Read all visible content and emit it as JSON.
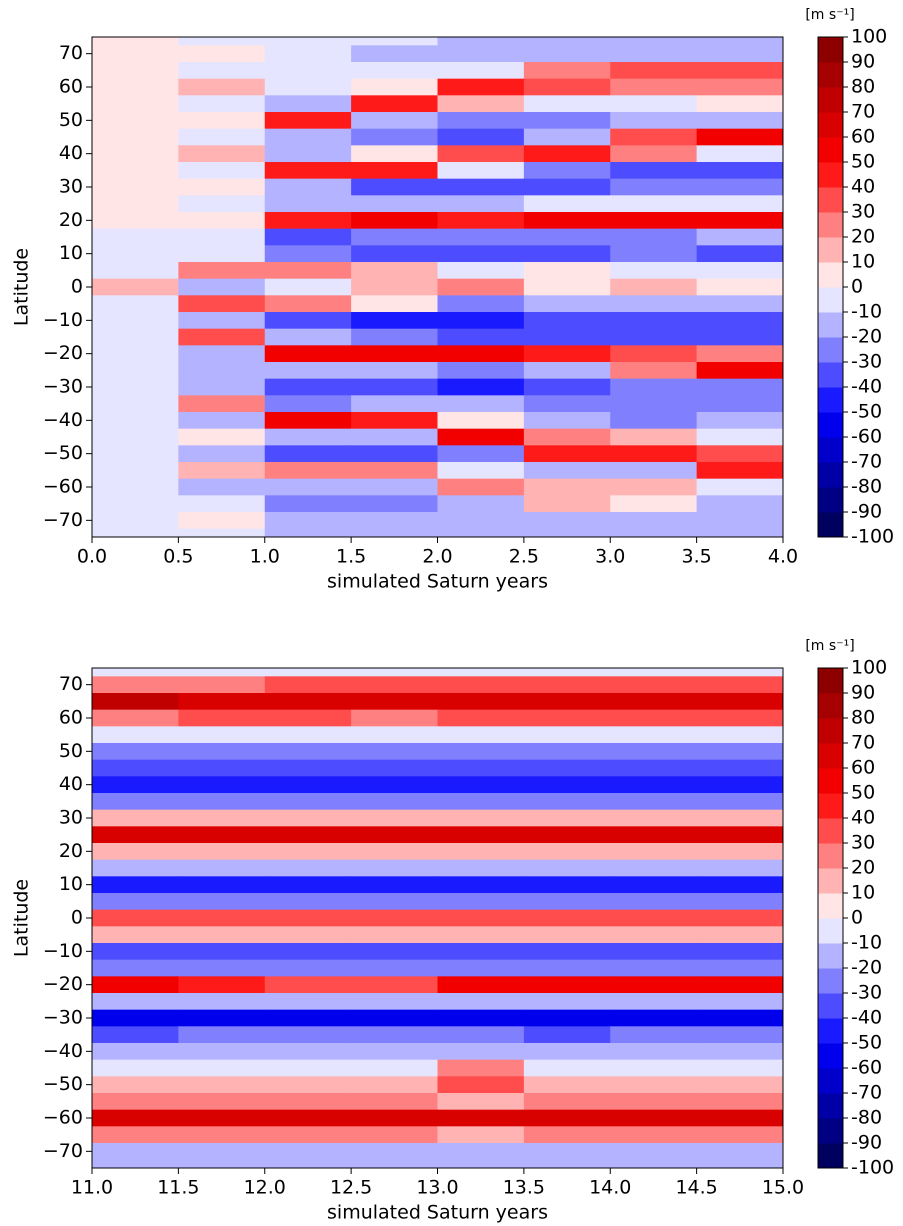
{
  "chart_data": [
    {
      "type": "heatmap",
      "xlabel": "simulated Saturn years",
      "ylabel": "Latitude",
      "xlim": [
        0,
        4
      ],
      "ylim": [
        -75,
        75
      ],
      "xticks": [
        {
          "value": 0,
          "label": "0.0"
        },
        0.5,
        {
          "value": 1,
          "label": "1.0"
        },
        1.5,
        {
          "value": 2,
          "label": "2.0"
        },
        2.5,
        {
          "value": 3,
          "label": "3.0"
        },
        3.5,
        {
          "value": 4,
          "label": "4.0"
        }
      ],
      "yticks": [
        70,
        60,
        50,
        40,
        30,
        20,
        10,
        0,
        {
          "value": -10,
          "label": "−10"
        },
        {
          "value": -20,
          "label": "−20"
        },
        {
          "value": -30,
          "label": "−30"
        },
        {
          "value": -40,
          "label": "−40"
        },
        {
          "value": -50,
          "label": "−50"
        },
        {
          "value": -60,
          "label": "−60"
        },
        {
          "value": -70,
          "label": "−70"
        }
      ],
      "colorbar": {
        "label": "[m s⁻¹]",
        "lim": [
          -100,
          100
        ],
        "ticks": [
          100,
          90,
          80,
          70,
          60,
          50,
          40,
          30,
          20,
          10,
          0,
          -10,
          -20,
          -30,
          -40,
          -50,
          -60,
          -70,
          -80,
          -90,
          -100
        ]
      },
      "x": [
        0.25,
        0.75,
        1.25,
        1.75,
        2.25,
        2.75,
        3.25,
        3.75
      ],
      "y": [
        75,
        70,
        65,
        60,
        55,
        50,
        45,
        40,
        35,
        30,
        25,
        20,
        15,
        10,
        5,
        0,
        -5,
        -10,
        -15,
        -20,
        -25,
        -30,
        -35,
        -40,
        -45,
        -50,
        -55,
        -60,
        -65,
        -70,
        -75
      ],
      "z": [
        [
          1,
          -3,
          -5,
          -5,
          -10,
          -10,
          -10,
          -10
        ],
        [
          1,
          5,
          -5,
          -10,
          -15,
          -10,
          -15,
          -10
        ],
        [
          1,
          -3,
          -5,
          -5,
          -5,
          30,
          40,
          40
        ],
        [
          1,
          15,
          -5,
          10,
          50,
          40,
          30,
          30
        ],
        [
          1,
          -3,
          -10,
          50,
          20,
          -5,
          0,
          10
        ],
        [
          1,
          10,
          50,
          -10,
          -20,
          -20,
          -15,
          -10
        ],
        [
          1,
          -3,
          -10,
          -20,
          -30,
          -10,
          40,
          60
        ],
        [
          1,
          15,
          -15,
          10,
          40,
          50,
          30,
          0
        ],
        [
          1,
          -3,
          50,
          50,
          0,
          -20,
          -30,
          -30
        ],
        [
          1,
          10,
          -10,
          -30,
          -35,
          -30,
          -20,
          -20
        ],
        [
          1,
          -3,
          -10,
          -15,
          -10,
          -5,
          -5,
          -5
        ],
        [
          1,
          10,
          50,
          60,
          50,
          55,
          55,
          60
        ],
        [
          0,
          -3,
          -30,
          -20,
          -25,
          -20,
          -20,
          -15
        ],
        [
          -5,
          -5,
          -25,
          -30,
          -30,
          -30,
          -25,
          -30
        ],
        [
          -5,
          30,
          30,
          20,
          -5,
          10,
          -5,
          -5
        ],
        [
          20,
          -10,
          -5,
          20,
          30,
          10,
          15,
          10
        ],
        [
          -5,
          40,
          30,
          10,
          -20,
          -15,
          -10,
          -10
        ],
        [
          -3,
          -10,
          -30,
          -40,
          -40,
          -35,
          -30,
          -30
        ],
        [
          0,
          40,
          -15,
          -25,
          -30,
          -30,
          -30,
          -30
        ],
        [
          0,
          -10,
          60,
          60,
          60,
          50,
          40,
          30
        ],
        [
          0,
          -10,
          -10,
          -10,
          -20,
          -10,
          30,
          60
        ],
        [
          0,
          -10,
          -35,
          -35,
          -40,
          -35,
          -25,
          -20
        ],
        [
          0,
          30,
          -20,
          -15,
          -15,
          -20,
          -25,
          -20
        ],
        [
          0,
          -10,
          60,
          50,
          10,
          -15,
          -20,
          -15
        ],
        [
          0,
          10,
          -10,
          -10,
          60,
          30,
          20,
          -5
        ],
        [
          0,
          -10,
          -30,
          -30,
          -20,
          50,
          50,
          40
        ],
        [
          0,
          15,
          30,
          30,
          0,
          -10,
          -10,
          50
        ],
        [
          0,
          -10,
          -10,
          -10,
          30,
          20,
          20,
          0
        ],
        [
          0,
          -3,
          -20,
          -20,
          -10,
          20,
          10,
          -10
        ],
        [
          0,
          10,
          -10,
          -10,
          -15,
          -10,
          -10,
          -10
        ],
        [
          0,
          -5,
          -15,
          -15,
          -15,
          -10,
          -10,
          -10
        ]
      ]
    },
    {
      "type": "heatmap",
      "xlabel": "simulated Saturn years",
      "ylabel": "Latitude",
      "xlim": [
        11,
        15
      ],
      "ylim": [
        -75,
        75
      ],
      "xticks": [
        {
          "value": 11,
          "label": "11.0"
        },
        11.5,
        {
          "value": 12,
          "label": "12.0"
        },
        12.5,
        {
          "value": 13,
          "label": "13.0"
        },
        13.5,
        {
          "value": 14,
          "label": "14.0"
        },
        14.5,
        {
          "value": 15,
          "label": "15.0"
        }
      ],
      "yticks": [
        70,
        60,
        50,
        40,
        30,
        20,
        10,
        0,
        {
          "value": -10,
          "label": "−10"
        },
        {
          "value": -20,
          "label": "−20"
        },
        {
          "value": -30,
          "label": "−30"
        },
        {
          "value": -40,
          "label": "−40"
        },
        {
          "value": -50,
          "label": "−50"
        },
        {
          "value": -60,
          "label": "−60"
        },
        {
          "value": -70,
          "label": "−70"
        }
      ],
      "colorbar": {
        "label": "[m s⁻¹]",
        "lim": [
          -100,
          100
        ],
        "ticks": [
          100,
          90,
          80,
          70,
          60,
          50,
          40,
          30,
          20,
          10,
          0,
          -10,
          -20,
          -30,
          -40,
          -50,
          -60,
          -70,
          -80,
          -90,
          -100
        ]
      },
      "x": [
        11.25,
        11.75,
        12.25,
        12.75,
        13.25,
        13.75,
        14.25,
        14.75
      ],
      "y": [
        75,
        70,
        65,
        60,
        55,
        50,
        45,
        40,
        35,
        30,
        25,
        20,
        15,
        10,
        5,
        0,
        -5,
        -10,
        -15,
        -20,
        -25,
        -30,
        -35,
        -40,
        -45,
        -50,
        -55,
        -60,
        -65,
        -70,
        -75
      ],
      "z": [
        [
          -5,
          -5,
          -5,
          -5,
          -5,
          -5,
          -5,
          -5
        ],
        [
          30,
          30,
          35,
          40,
          40,
          40,
          40,
          40
        ],
        [
          80,
          70,
          70,
          70,
          70,
          70,
          70,
          70
        ],
        [
          30,
          40,
          40,
          30,
          40,
          40,
          40,
          40
        ],
        [
          -5,
          -5,
          -5,
          -5,
          -5,
          -5,
          -5,
          -5
        ],
        [
          -25,
          -20,
          -20,
          -20,
          -20,
          -20,
          -20,
          -20
        ],
        [
          -35,
          -35,
          -35,
          -35,
          -35,
          -35,
          -35,
          -35
        ],
        [
          -40,
          -40,
          -40,
          -40,
          -45,
          -45,
          -40,
          -40
        ],
        [
          -25,
          -25,
          -25,
          -25,
          -25,
          -25,
          -25,
          -25
        ],
        [
          20,
          20,
          20,
          20,
          20,
          20,
          20,
          20
        ],
        [
          70,
          70,
          70,
          70,
          70,
          70,
          70,
          70
        ],
        [
          20,
          20,
          20,
          20,
          20,
          20,
          20,
          20
        ],
        [
          -15,
          -15,
          -15,
          -15,
          -15,
          -15,
          -15,
          -15
        ],
        [
          -40,
          -40,
          -40,
          -40,
          -45,
          -40,
          -40,
          -40
        ],
        [
          -20,
          -20,
          -20,
          -25,
          -20,
          -20,
          -20,
          -25
        ],
        [
          40,
          40,
          35,
          40,
          40,
          40,
          40,
          40
        ],
        [
          20,
          20,
          20,
          20,
          20,
          20,
          20,
          20
        ],
        [
          -30,
          -35,
          -35,
          -35,
          -35,
          -35,
          -35,
          -35
        ],
        [
          -20,
          -20,
          -20,
          -25,
          -20,
          -20,
          -20,
          -20
        ],
        [
          60,
          50,
          40,
          40,
          60,
          60,
          60,
          60
        ],
        [
          -10,
          -10,
          -10,
          -10,
          -10,
          -10,
          -10,
          -10
        ],
        [
          -50,
          -50,
          -50,
          -50,
          -50,
          -50,
          -50,
          -50
        ],
        [
          -30,
          -20,
          -20,
          -20,
          -20,
          -30,
          -25,
          -20
        ],
        [
          -15,
          -10,
          -10,
          -10,
          -10,
          -10,
          -10,
          -10
        ],
        [
          -5,
          -5,
          -5,
          -5,
          30,
          -5,
          -5,
          -5
        ],
        [
          20,
          20,
          15,
          15,
          40,
          20,
          20,
          20
        ],
        [
          30,
          30,
          25,
          25,
          20,
          30,
          30,
          30
        ],
        [
          70,
          70,
          70,
          70,
          70,
          70,
          70,
          70
        ],
        [
          30,
          30,
          30,
          30,
          20,
          30,
          30,
          30
        ],
        [
          -10,
          -10,
          -10,
          -10,
          -10,
          -10,
          -10,
          -10
        ],
        [
          -15,
          -15,
          -15,
          -15,
          -15,
          -15,
          -15,
          -15
        ]
      ]
    }
  ]
}
